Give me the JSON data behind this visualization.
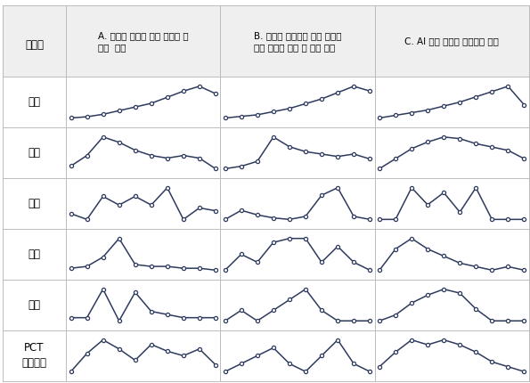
{
  "col_headers": [
    "A. 양방향 통수를 위한 하굿둑 구\n조물  기술",
    "B. 하굿둑 자율운영 방법 개발을\n위한 데이터 확보 및 분석 기술",
    "C. AI 기반 하굿둑 통합운영 기술"
  ],
  "row_labels": [
    "중국",
    "미국",
    "한국",
    "일본",
    "유럽",
    "PCT\n국제출원"
  ],
  "header_col": "특허청",
  "line_color": "#2f3b5e",
  "marker_face_color": "#ffffff",
  "marker_edge_color": "#2f3b5e",
  "bg_header": "#efefef",
  "bg_cell": "#ffffff",
  "border_color": "#bbbbbb",
  "series": {
    "중국_A": [
      1.0,
      1.1,
      1.3,
      1.6,
      1.9,
      2.2,
      2.7,
      3.2,
      3.6,
      3.0
    ],
    "중국_B": [
      1.0,
      1.1,
      1.2,
      1.4,
      1.6,
      1.9,
      2.2,
      2.6,
      3.0,
      2.7
    ],
    "중국_C": [
      1.0,
      1.2,
      1.4,
      1.6,
      1.9,
      2.2,
      2.6,
      3.0,
      3.4,
      2.0
    ],
    "미국_A": [
      1.0,
      1.4,
      2.1,
      1.9,
      1.6,
      1.4,
      1.3,
      1.4,
      1.3,
      0.9
    ],
    "미국_B": [
      1.0,
      1.1,
      1.3,
      2.3,
      1.9,
      1.7,
      1.6,
      1.5,
      1.6,
      1.4
    ],
    "미국_C": [
      1.0,
      1.6,
      2.2,
      2.6,
      2.9,
      2.8,
      2.5,
      2.3,
      2.1,
      1.6
    ],
    "한국_A": [
      1.0,
      0.8,
      1.6,
      1.3,
      1.6,
      1.3,
      1.9,
      0.8,
      1.2,
      1.1
    ],
    "한국_B": [
      1.0,
      1.6,
      1.3,
      1.1,
      1.0,
      1.2,
      2.6,
      3.1,
      1.2,
      1.0
    ],
    "한국_C": [
      1.0,
      1.0,
      2.3,
      1.6,
      2.1,
      1.3,
      2.3,
      1.0,
      1.0,
      1.0
    ],
    "일본_A": [
      1.0,
      1.1,
      1.6,
      2.6,
      1.2,
      1.1,
      1.1,
      1.0,
      1.0,
      0.9
    ],
    "일본_B": [
      1.0,
      1.4,
      1.2,
      1.7,
      1.8,
      1.8,
      1.2,
      1.6,
      1.2,
      1.0
    ],
    "일본_C": [
      1.0,
      1.6,
      1.9,
      1.6,
      1.4,
      1.2,
      1.1,
      1.0,
      1.1,
      1.0
    ],
    "유럽_A": [
      1.0,
      1.0,
      1.9,
      0.9,
      1.8,
      1.2,
      1.1,
      1.0,
      1.0,
      1.0
    ],
    "유럽_B": [
      1.0,
      1.1,
      1.0,
      1.1,
      1.2,
      1.3,
      1.1,
      1.0,
      1.0,
      1.0
    ],
    "유럽_C": [
      1.0,
      1.3,
      1.9,
      2.3,
      2.6,
      2.4,
      1.6,
      1.0,
      1.0,
      1.0
    ],
    "PCT국제출원_A": [
      0.5,
      1.3,
      1.9,
      1.5,
      1.0,
      1.7,
      1.4,
      1.2,
      1.5,
      0.8
    ],
    "PCT국제출원_B": [
      1.0,
      1.1,
      1.2,
      1.3,
      1.1,
      1.0,
      1.2,
      1.4,
      1.1,
      1.0
    ],
    "PCT국제출원_C": [
      1.0,
      1.6,
      2.1,
      1.9,
      2.1,
      1.9,
      1.6,
      1.2,
      1.0,
      0.8
    ]
  }
}
